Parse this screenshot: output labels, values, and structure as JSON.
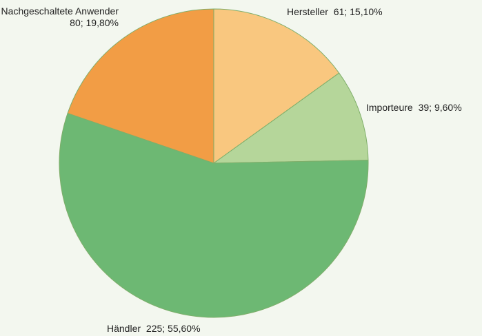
{
  "chart_data": {
    "type": "pie",
    "categories": [
      "Hersteller",
      "Importeure",
      "Händler",
      "Nachgeschaltete Anwender"
    ],
    "values": [
      61,
      39,
      225,
      80
    ],
    "value_labels": [
      "61; 15,10%",
      "39; 9,60%",
      "225; 55,60%",
      "80; 19,80%"
    ],
    "colors": [
      "#f9c77f",
      "#b5d69a",
      "#6db873",
      "#f29d45"
    ]
  }
}
